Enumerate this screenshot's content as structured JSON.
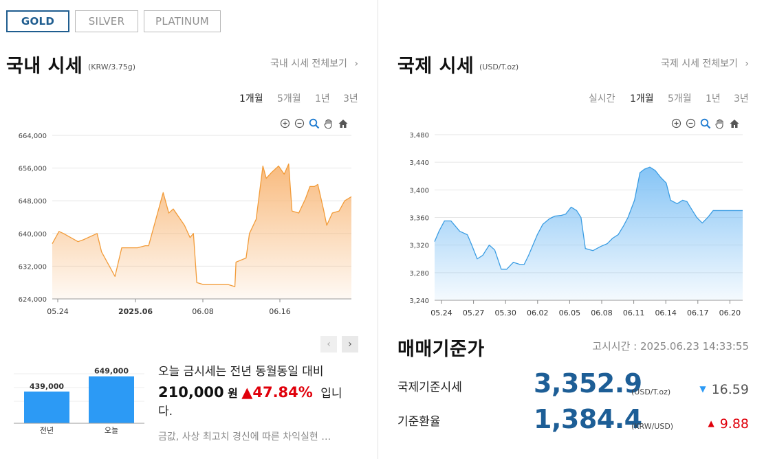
{
  "tabs": [
    {
      "label": "GOLD",
      "active": true
    },
    {
      "label": "SILVER",
      "active": false
    },
    {
      "label": "PLATINUM",
      "active": false
    }
  ],
  "domestic": {
    "title": "국내 시세",
    "unit": "(KRW/3.75g)",
    "view_all": "국내 시세 전체보기",
    "periods": [
      "1개월",
      "5개월",
      "1년",
      "3년"
    ],
    "active_period": "1개월"
  },
  "international": {
    "title": "국제 시세",
    "unit": "(USD/T.oz)",
    "view_all": "국제 시세 전체보기",
    "periods": [
      "실시간",
      "1개월",
      "5개월",
      "1년",
      "3년"
    ],
    "active_period": "1개월"
  },
  "chart_tools": [
    "zoom-in-icon",
    "zoom-out-icon",
    "magnify-icon",
    "pan-hand-icon",
    "home-icon"
  ],
  "colors": {
    "gold_line": "#f29b38",
    "gold_fill": "#f8b777",
    "intl_line": "#3b9de3",
    "intl_fill": "#7fc1f5",
    "accent": "#1d5e96",
    "up": "#e0000b",
    "bar": "#2c9af5"
  },
  "chart_data": [
    {
      "type": "area",
      "ylim": [
        624000,
        664000
      ],
      "yticks": [
        "664,000",
        "656,000",
        "648,000",
        "640,000",
        "632,000",
        "624,000"
      ],
      "xticks": [
        {
          "label": "05.24",
          "index": 0,
          "bold": false
        },
        {
          "label": "2025.06",
          "index": 8,
          "bold": true
        },
        {
          "label": "06.08",
          "index": 15,
          "bold": false
        },
        {
          "label": "06.16",
          "index": 23,
          "bold": false
        }
      ],
      "x_count": 30,
      "values": [
        637500,
        640500,
        640000,
        638000,
        638500,
        640000,
        635500,
        629500,
        636500,
        636500,
        636500,
        637000,
        637000,
        644000,
        650000,
        645000,
        646000,
        642000,
        639000,
        640000,
        628000,
        627500,
        627500,
        627500,
        627500,
        627000,
        633000,
        634000,
        640000,
        643500,
        656500,
        653500,
        655000,
        656500,
        654500,
        657000,
        645500,
        645000,
        648500,
        651500,
        651500,
        652000,
        646000,
        642000,
        645000,
        645500,
        648000,
        649000
      ],
      "x_points": [
        0.0,
        0.6,
        1.0,
        2.3,
        2.8,
        4.0,
        4.4,
        5.6,
        6.2,
        7.0,
        7.6,
        8.3,
        8.6,
        9.3,
        9.9,
        10.4,
        10.8,
        11.8,
        12.3,
        12.6,
        12.9,
        13.5,
        14.3,
        15.0,
        15.7,
        16.3,
        16.4,
        17.3,
        17.6,
        18.2,
        18.8,
        19.1,
        19.6,
        20.2,
        20.7,
        21.1,
        21.4,
        22.0,
        22.6,
        23.0,
        23.4,
        23.7,
        24.2,
        24.5,
        25.0,
        25.6,
        26.1,
        26.7
      ],
      "x_max": 26.7
    },
    {
      "type": "area",
      "ylim": [
        3240,
        3480
      ],
      "yticks": [
        "3,480",
        "3,440",
        "3,400",
        "3,360",
        "3,320",
        "3,280",
        "3,240"
      ],
      "xticks": [
        "05.24",
        "05.27",
        "05.30",
        "06.02",
        "06.05",
        "06.08",
        "06.11",
        "06.14",
        "06.17",
        "06.20"
      ],
      "x_max": 28.2,
      "x_points": [
        0.0,
        0.4,
        0.9,
        1.5,
        2.3,
        3.0,
        3.4,
        3.9,
        4.4,
        5.0,
        5.5,
        6.1,
        6.6,
        7.2,
        7.8,
        8.2,
        8.6,
        9.4,
        9.9,
        10.5,
        11.0,
        11.6,
        12.0,
        12.5,
        13.0,
        13.4,
        13.8,
        14.5,
        15.2,
        15.8,
        16.3,
        16.8,
        17.3,
        17.7,
        18.3,
        18.8,
        19.2,
        19.7,
        20.2,
        20.7,
        21.2,
        21.6,
        22.2,
        22.7,
        23.1,
        23.6,
        24.0,
        24.5,
        25.0,
        25.5,
        26.0,
        26.5,
        27.0,
        27.6,
        28.2
      ],
      "values": [
        3325,
        3340,
        3355,
        3355,
        3340,
        3335,
        3320,
        3300,
        3305,
        3320,
        3313,
        3285,
        3285,
        3295,
        3292,
        3292,
        3305,
        3335,
        3350,
        3358,
        3362,
        3363,
        3365,
        3375,
        3370,
        3360,
        3315,
        3312,
        3318,
        3322,
        3330,
        3335,
        3348,
        3360,
        3385,
        3425,
        3430,
        3433,
        3428,
        3418,
        3410,
        3385,
        3380,
        3385,
        3383,
        3370,
        3360,
        3352,
        3360,
        3370,
        3370,
        3370,
        3370,
        3370,
        3370
      ]
    },
    {
      "type": "bar",
      "categories": [
        "전년",
        "오늘"
      ],
      "values": [
        439000,
        649000
      ],
      "labels": [
        "439,000",
        "649,000"
      ],
      "ylim": [
        0,
        760000
      ]
    }
  ],
  "summary": {
    "line1": "오늘 금시세는 전년 동월동일 대비",
    "amount": "210,000",
    "won": "원",
    "arrow": "▲",
    "percent": "47.84%",
    "tail": "입니",
    "line3": "다.",
    "news": "금값, 사상 최고치 경신에 따른 차익실현 …"
  },
  "standard": {
    "title": "매매기준가",
    "time_label": "고시시간 : 2025.06.23 14:33:55",
    "rows": [
      {
        "label": "국제기준시세",
        "value": "3,352.9",
        "unit": "(USD/T.oz)",
        "arrow": "▼",
        "change": "16.59",
        "direction": "down"
      },
      {
        "label": "기준환율",
        "value": "1,384.4",
        "unit": "(KRW/USD)",
        "arrow": "▲",
        "change": "9.88",
        "direction": "up"
      }
    ]
  }
}
